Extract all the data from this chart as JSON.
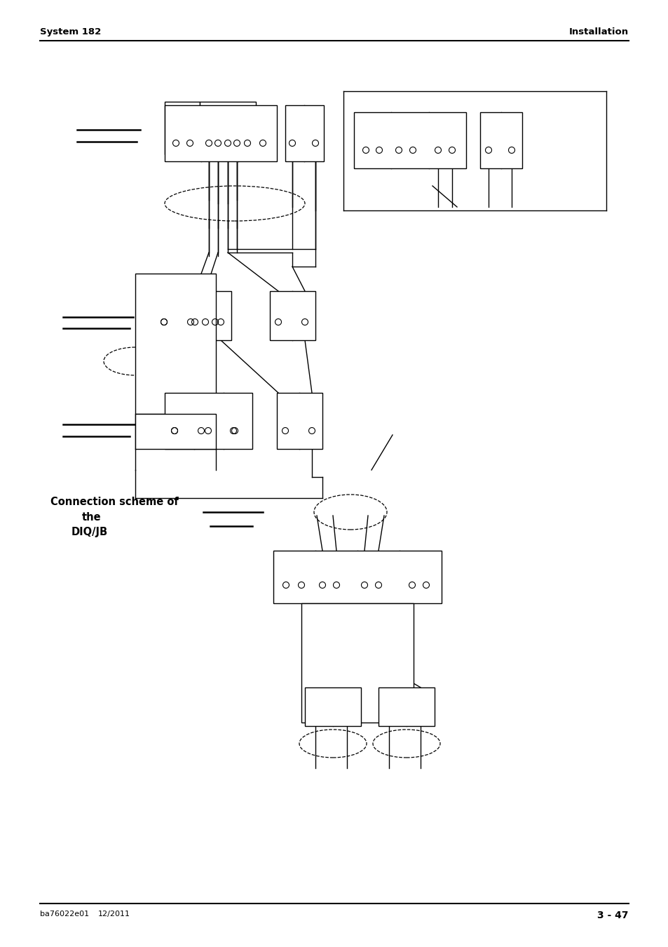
{
  "page_width": 9.54,
  "page_height": 13.5,
  "bg_color": "#ffffff",
  "header_left": "System 182",
  "header_right": "Installation",
  "footer_left": "ba76022e01",
  "footer_left2": "12/2011",
  "footer_right": "3 - 47",
  "caption_line1": "Connection scheme of",
  "caption_line2": "the",
  "caption_line3": "DIQ/JB"
}
